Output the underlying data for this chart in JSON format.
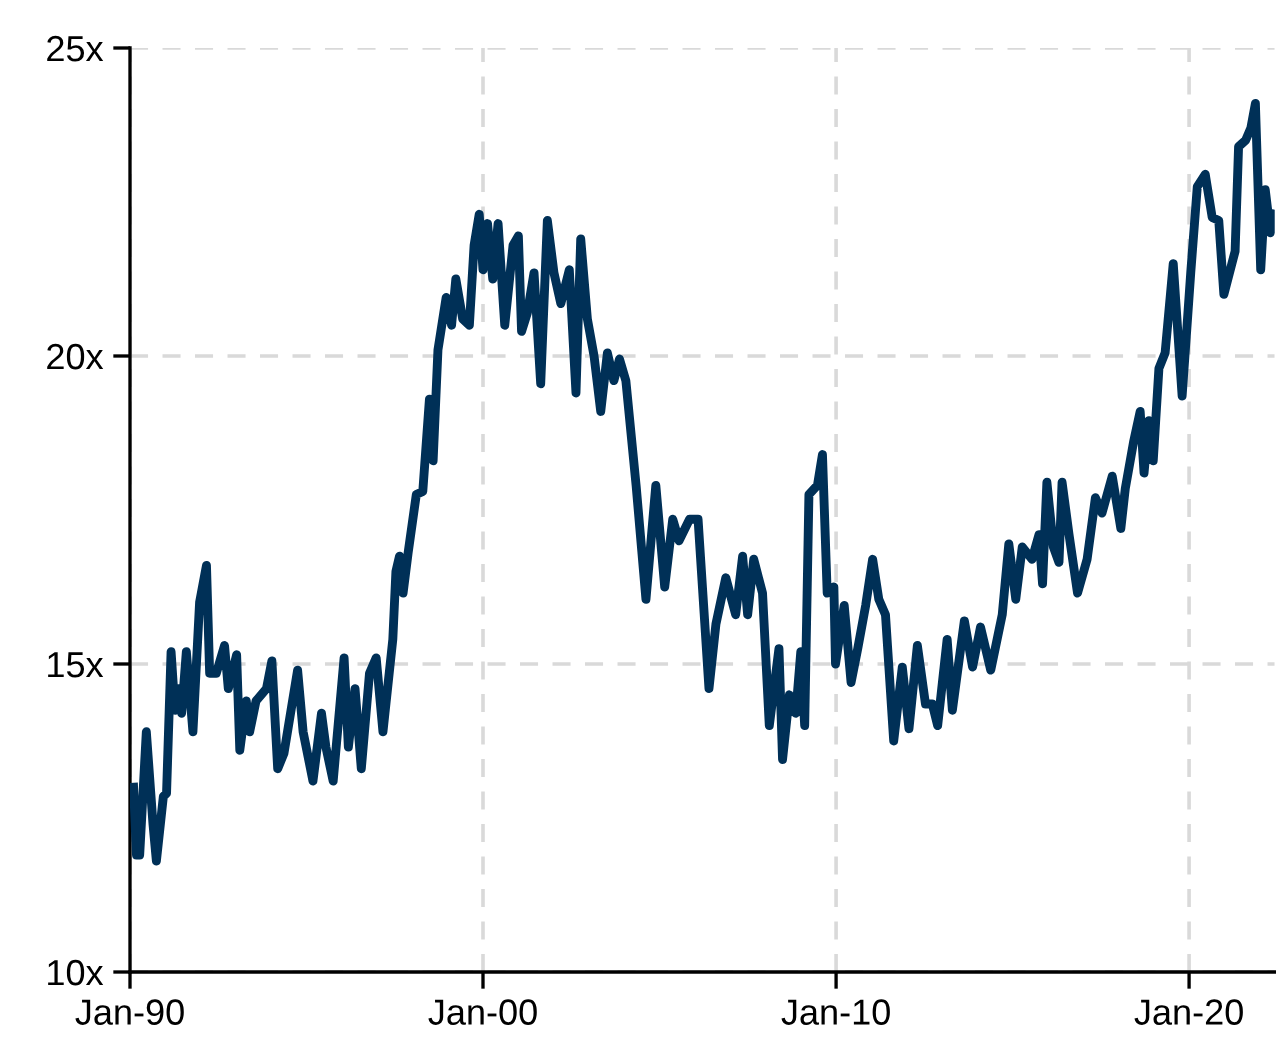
{
  "chart_data": {
    "type": "line",
    "x": [
      "1990-02-07",
      "1990-03-09",
      "1990-04-11",
      "1990-06-19",
      "1990-08-27",
      "1990-10-01",
      "1990-12-12",
      "1991-01-14",
      "1991-03-02",
      "1991-04-11",
      "1991-05-17",
      "1991-06-19",
      "1991-08-07",
      "1991-10-14",
      "1991-12-22",
      "1992-03-02",
      "1992-04-04",
      "1992-06-12",
      "1992-09-05",
      "1992-10-14",
      "1993-01-08",
      "1993-02-10",
      "1993-04-18",
      "1993-05-23",
      "1993-07-28",
      "1993-11-13",
      "1994-01-08",
      "1994-03-09",
      "1994-05-13",
      "1994-10-01",
      "1994-11-27",
      "1995-03-09",
      "1995-06-05",
      "1995-07-21",
      "1995-10-04",
      "1996-01-25",
      "1996-03-09",
      "1996-05-17",
      "1996-07-21",
      "1996-10-14",
      "1996-12-22",
      "1997-03-02",
      "1997-06-12",
      "1997-07-14",
      "1997-08-20",
      "1997-09-26",
      "1997-11-17",
      "1998-02-10",
      "1998-04-18",
      "1998-06-26",
      "1998-08-03",
      "1998-09-22",
      "1998-12-16",
      "1999-02-10",
      "1999-03-26",
      "1999-06-05",
      "1999-08-13",
      "1999-10-01",
      "1999-11-23",
      "2000-01-01",
      "2000-02-17",
      "2000-04-11",
      "2000-06-05",
      "2000-08-13",
      "2000-11-07",
      "2001-01-01",
      "2001-02-03",
      "2001-04-04",
      "2001-06-12",
      "2001-08-20",
      "2001-10-28",
      "2002-01-04",
      "2002-03-16",
      "2002-06-12",
      "2002-08-20",
      "2002-10-08",
      "2002-12-16",
      "2003-02-23",
      "2003-05-03",
      "2003-07-11",
      "2003-09-16",
      "2003-11-13",
      "2004-01-18",
      "2004-05-03",
      "2004-08-13",
      "2004-11-23",
      "2005-02-23",
      "2005-05-17",
      "2005-07-21",
      "2005-11-07",
      "2006-02-03",
      "2006-05-27",
      "2006-08-07",
      "2006-11-17",
      "2007-02-27",
      "2007-05-10",
      "2007-07-01",
      "2007-09-02",
      "2007-12-02",
      "2008-02-10",
      "2008-05-20",
      "2008-06-26",
      "2008-09-05",
      "2008-11-10",
      "2009-01-01",
      "2009-02-10",
      "2009-03-26",
      "2009-06-22",
      "2009-08-13",
      "2009-10-01",
      "2009-12-09",
      "2009-12-26",
      "2010-03-26",
      "2010-06-05",
      "2010-08-13",
      "2010-11-03",
      "2011-01-14",
      "2011-03-19",
      "2011-05-27",
      "2011-08-20",
      "2011-11-17",
      "2012-01-25",
      "2012-04-21",
      "2012-07-14",
      "2012-09-22",
      "2012-11-17",
      "2013-02-23",
      "2013-04-18",
      "2013-08-20",
      "2013-11-13",
      "2014-02-03",
      "2014-05-20",
      "2014-09-16",
      "2014-11-23",
      "2015-02-03",
      "2015-04-11",
      "2015-07-21",
      "2015-10-01",
      "2015-11-07",
      "2015-12-22",
      "2016-02-27",
      "2016-04-25",
      "2016-05-27",
      "2016-08-07",
      "2016-11-03",
      "2017-02-10",
      "2017-05-07",
      "2017-07-14",
      "2017-10-28",
      "2018-01-25",
      "2018-03-12",
      "2018-06-05",
      "2018-08-13",
      "2018-09-22",
      "2018-11-10",
      "2018-12-26",
      "2019-02-23",
      "2019-04-28",
      "2019-07-21",
      "2019-10-21",
      "2020-01-18",
      "2020-03-26",
      "2020-06-16",
      "2020-08-27",
      "2020-11-03",
      "2020-12-26",
      "2021-04-21",
      "2021-05-27",
      "2021-08-07",
      "2021-10-01",
      "2021-11-17",
      "2022-01-11",
      "2022-02-27",
      "2022-04-21",
      "2022-06-05"
    ],
    "series": [
      {
        "color": "#003057",
        "values": [
          13.0,
          11.9,
          11.9,
          13.9,
          12.4,
          11.8,
          12.85,
          12.9,
          15.2,
          14.25,
          14.6,
          14.2,
          15.2,
          13.9,
          16.0,
          16.6,
          14.85,
          14.85,
          15.3,
          14.6,
          15.15,
          13.6,
          14.4,
          13.9,
          14.4,
          14.6,
          15.05,
          13.3,
          13.55,
          14.9,
          13.9,
          13.1,
          14.2,
          13.65,
          13.1,
          15.1,
          13.65,
          14.6,
          13.3,
          14.85,
          15.1,
          13.9,
          15.4,
          16.5,
          16.75,
          16.15,
          16.8,
          17.75,
          17.8,
          19.3,
          18.3,
          20.1,
          20.95,
          20.5,
          21.25,
          20.6,
          20.5,
          21.8,
          22.3,
          21.4,
          22.15,
          21.25,
          22.15,
          20.5,
          21.8,
          21.95,
          20.4,
          20.7,
          21.35,
          19.55,
          22.2,
          21.35,
          20.85,
          21.4,
          19.4,
          21.9,
          20.6,
          20.0,
          19.1,
          20.05,
          19.6,
          19.95,
          19.6,
          17.9,
          16.05,
          17.9,
          16.25,
          17.35,
          17.0,
          17.35,
          17.35,
          14.6,
          15.65,
          16.4,
          15.8,
          16.75,
          15.8,
          16.7,
          16.15,
          14.0,
          15.25,
          13.45,
          14.5,
          14.2,
          15.2,
          14.0,
          17.75,
          17.9,
          18.4,
          16.15,
          16.25,
          15.0,
          15.95,
          14.7,
          15.25,
          15.95,
          16.7,
          16.05,
          15.8,
          13.75,
          14.95,
          13.95,
          15.3,
          14.35,
          14.35,
          14.0,
          15.4,
          14.25,
          15.7,
          14.95,
          15.6,
          14.9,
          15.8,
          16.95,
          16.05,
          16.9,
          16.7,
          17.1,
          16.3,
          17.95,
          16.9,
          16.65,
          17.95,
          17.1,
          16.15,
          16.7,
          17.7,
          17.45,
          18.05,
          17.2,
          17.85,
          18.6,
          19.1,
          18.1,
          18.95,
          18.3,
          19.8,
          20.05,
          21.5,
          19.35,
          21.35,
          22.75,
          22.95,
          22.25,
          22.2,
          21.0,
          21.7,
          23.4,
          23.5,
          23.7,
          24.1,
          21.4,
          22.7,
          22.0,
          22.3
        ]
      }
    ],
    "xlim": [
      "1990-01-01",
      "2022-06-05"
    ],
    "xticks": [
      {
        "value": "1990-01-01",
        "label": "Jan-90"
      },
      {
        "value": "2000-01-01",
        "label": "Jan-00"
      },
      {
        "value": "2010-01-01",
        "label": "Jan-10"
      },
      {
        "value": "2020-01-01",
        "label": "Jan-20"
      }
    ],
    "ylim": [
      10,
      25
    ],
    "yticks": [
      {
        "value": 10,
        "label": "10x"
      },
      {
        "value": 15,
        "label": "15x"
      },
      {
        "value": 20,
        "label": "20x"
      },
      {
        "value": 25,
        "label": "25x"
      }
    ],
    "grid": true,
    "line_style": "solid",
    "marker": "none",
    "legend": false
  }
}
